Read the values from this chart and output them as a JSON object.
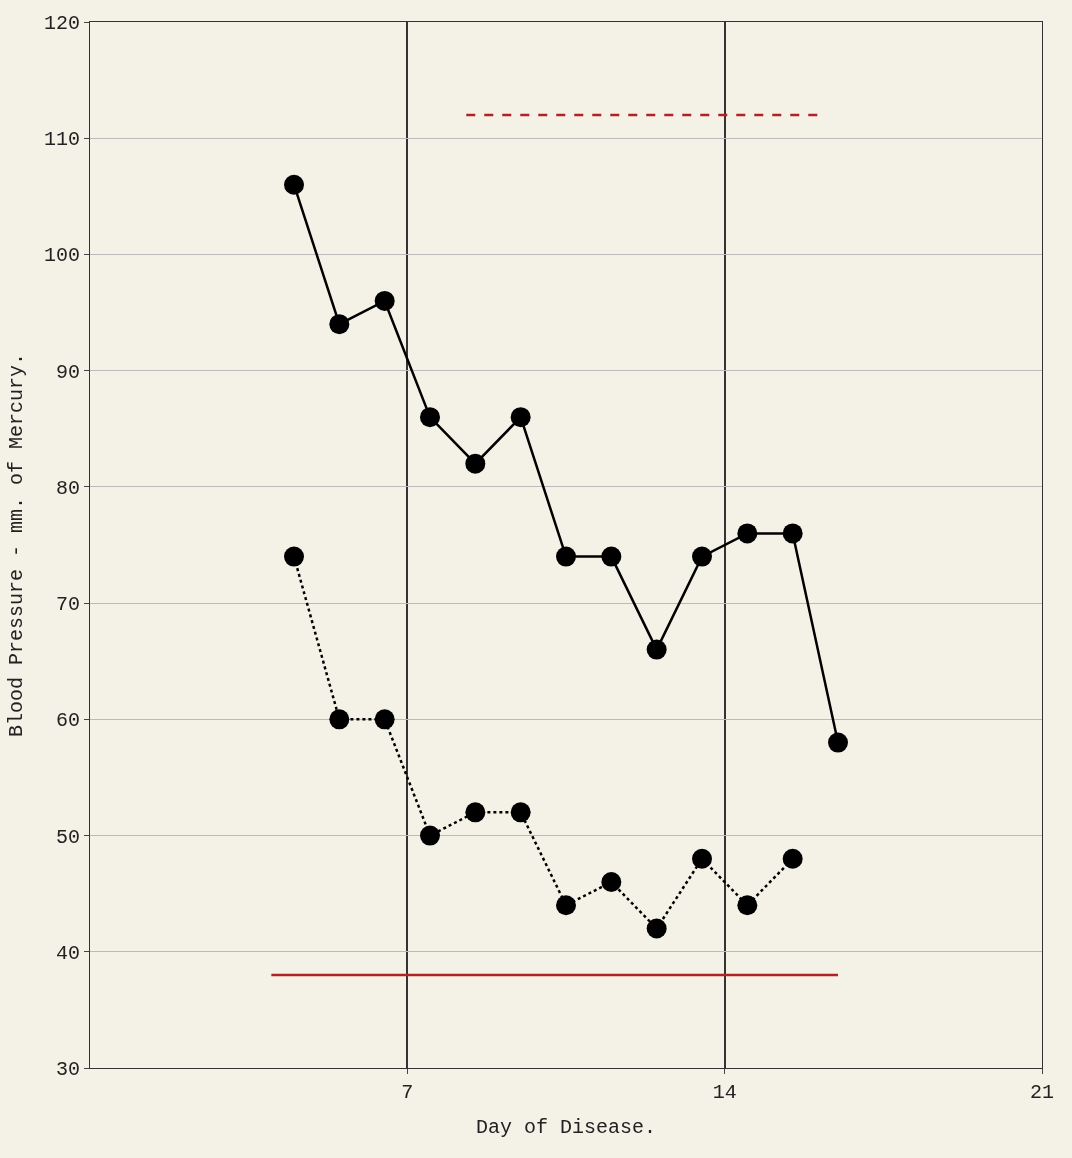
{
  "chart_data": {
    "type": "line",
    "xlabel": "Day of Disease.",
    "ylabel": "Blood Pressure - mm. of Mercury.",
    "xlim": [
      0,
      21
    ],
    "ylim": [
      30,
      120
    ],
    "xticks": [
      7,
      14,
      21
    ],
    "yticks": [
      30,
      40,
      50,
      60,
      70,
      80,
      90,
      100,
      110,
      120
    ],
    "grid": true,
    "x": [
      4.5,
      5.5,
      6.5,
      7.5,
      8.5,
      9.5,
      10.5,
      11.5,
      12.5,
      13.5,
      14.5,
      15.5,
      16.5
    ],
    "series": [
      {
        "color": "#000000",
        "line_style": "solid",
        "marker": "circle",
        "values": [
          106,
          94,
          96,
          86,
          82,
          86,
          74,
          74,
          66,
          74,
          76,
          76,
          58
        ]
      },
      {
        "color": "#000000",
        "line_style": "dotted",
        "marker": "circle",
        "values": [
          74,
          60,
          60,
          50,
          52,
          52,
          44,
          46,
          42,
          48,
          44,
          48,
          null
        ]
      },
      {
        "color": "#b22222",
        "line_style": "dashed",
        "marker": "none",
        "x": [
          8.3,
          16.05
        ],
        "values": [
          112,
          112
        ]
      },
      {
        "color": "#b22222",
        "line_style": "solid",
        "marker": "none",
        "x": [
          4,
          16.5
        ],
        "values": [
          38,
          38
        ]
      }
    ]
  }
}
